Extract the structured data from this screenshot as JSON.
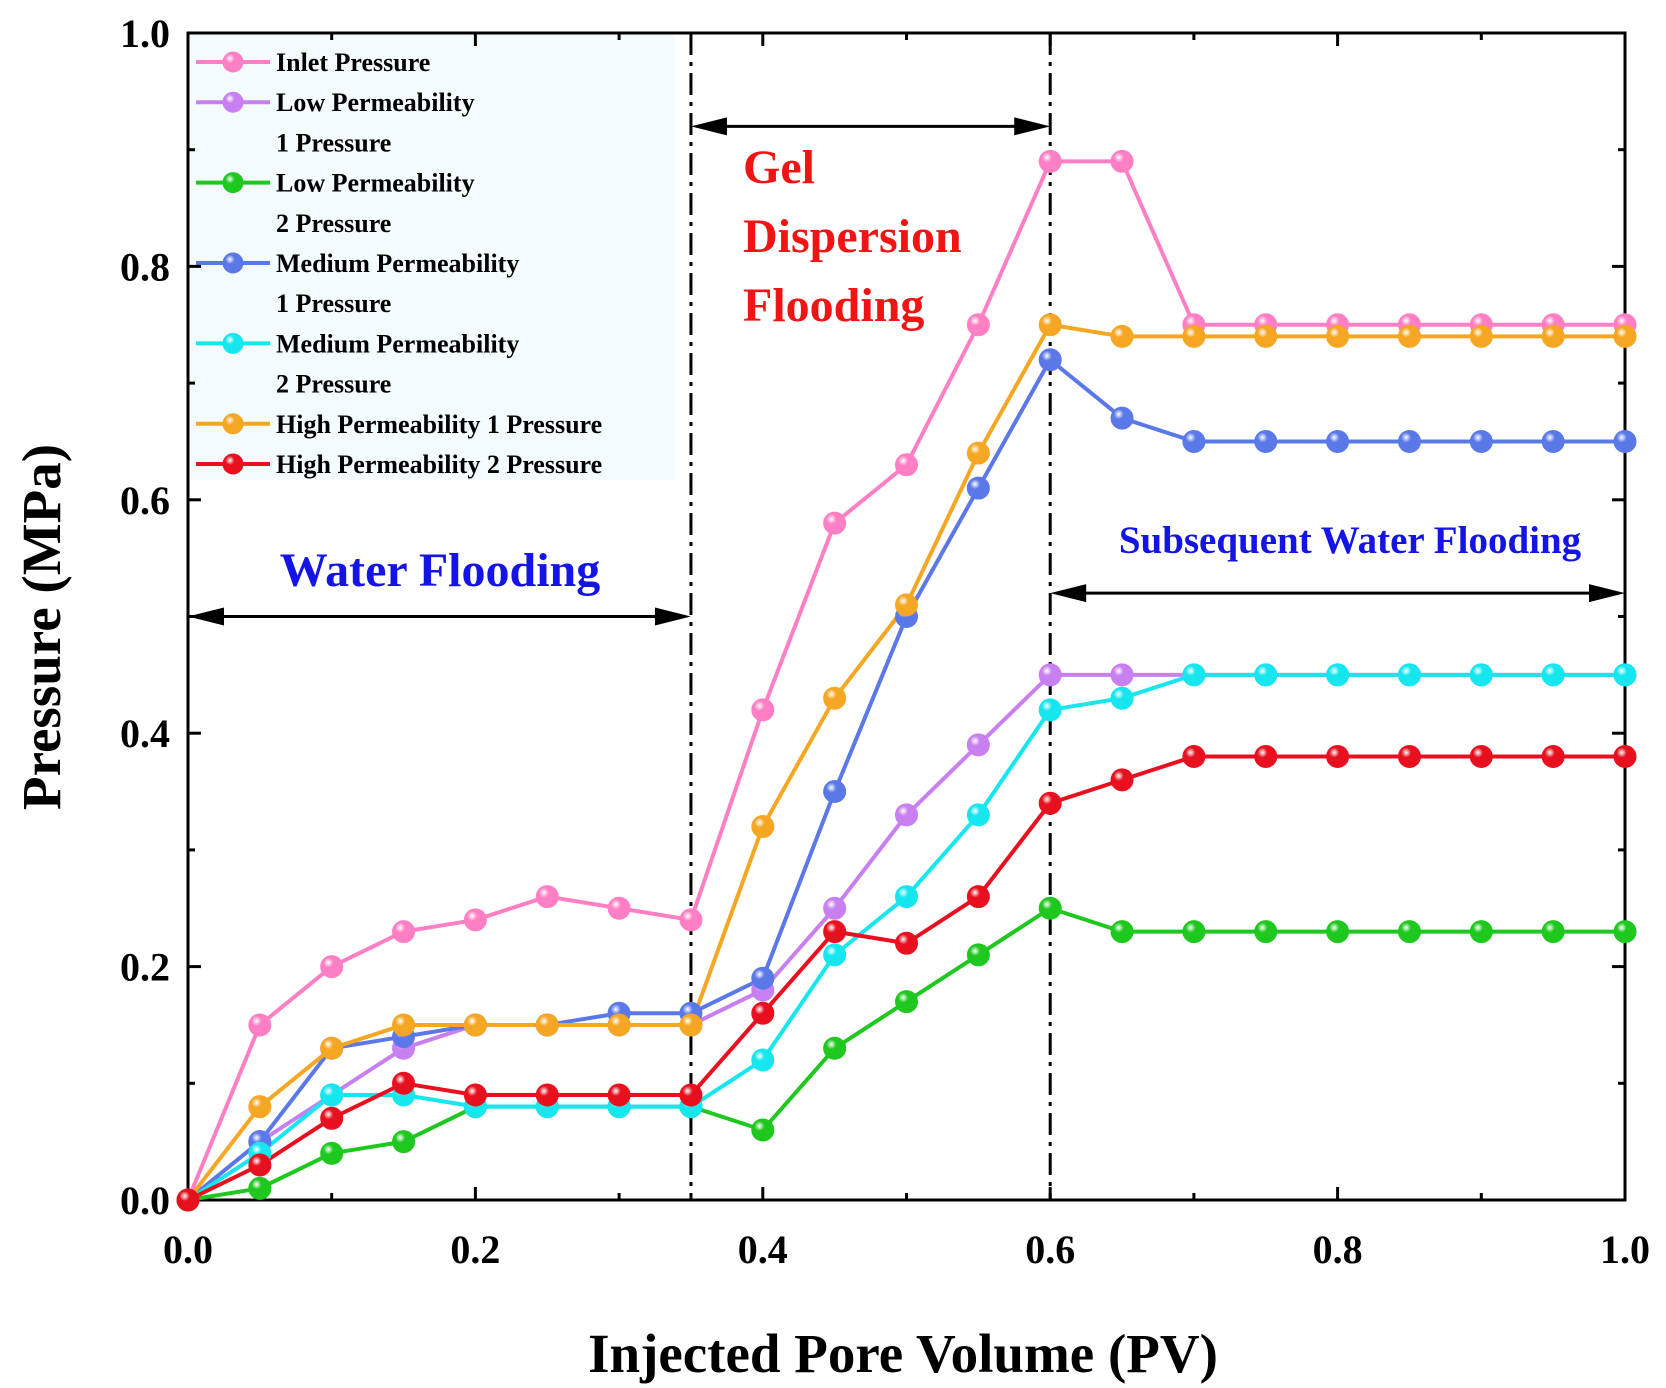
{
  "chart_data": {
    "type": "line",
    "xlabel": "Injected Pore Volume (PV)",
    "ylabel": "Pressure (MPa)",
    "xlim": [
      0,
      1
    ],
    "ylim": [
      0,
      1
    ],
    "xticks": [
      "0.0",
      "0.2",
      "0.4",
      "0.6",
      "0.8",
      "1.0"
    ],
    "yticks": [
      "0.0",
      "0.2",
      "0.4",
      "0.6",
      "0.8",
      "1.0"
    ],
    "x": [
      0.0,
      0.05,
      0.1,
      0.15,
      0.2,
      0.25,
      0.3,
      0.35,
      0.4,
      0.45,
      0.5,
      0.55,
      0.6,
      0.65,
      0.7,
      0.75,
      0.8,
      0.85,
      0.9,
      0.95,
      1.0
    ],
    "series": [
      {
        "name": "Inlet Pressure",
        "legend_lines": [
          "Inlet Pressure"
        ],
        "color": "#ff7fc4",
        "values": [
          0.0,
          0.15,
          0.2,
          0.23,
          0.24,
          0.26,
          0.25,
          0.24,
          0.42,
          0.58,
          0.63,
          0.75,
          0.89,
          0.89,
          0.75,
          0.75,
          0.75,
          0.75,
          0.75,
          0.75,
          0.75
        ]
      },
      {
        "name": "Low Permeability 1 Pressure",
        "legend_lines": [
          "Low Permeability",
          "1 Pressure"
        ],
        "color": "#c87ff0",
        "values": [
          0.0,
          0.05,
          0.09,
          0.13,
          0.15,
          0.15,
          0.15,
          0.15,
          0.18,
          0.25,
          0.33,
          0.39,
          0.45,
          0.45,
          0.45,
          0.45,
          0.45,
          0.45,
          0.45,
          0.45,
          0.45
        ]
      },
      {
        "name": "Low Permeability 2 Pressure",
        "legend_lines": [
          "Low Permeability",
          "2 Pressure"
        ],
        "color": "#1ec81e",
        "values": [
          0.0,
          0.01,
          0.04,
          0.05,
          0.08,
          0.08,
          0.08,
          0.08,
          0.06,
          0.13,
          0.17,
          0.21,
          0.25,
          0.23,
          0.23,
          0.23,
          0.23,
          0.23,
          0.23,
          0.23,
          0.23
        ]
      },
      {
        "name": "Medium Permeability 1 Pressure",
        "legend_lines": [
          "Medium Permeability",
          "1 Pressure"
        ],
        "color": "#5b78e8",
        "values": [
          0.0,
          0.05,
          0.13,
          0.14,
          0.15,
          0.15,
          0.16,
          0.16,
          0.19,
          0.35,
          0.5,
          0.61,
          0.72,
          0.67,
          0.65,
          0.65,
          0.65,
          0.65,
          0.65,
          0.65,
          0.65
        ]
      },
      {
        "name": "Medium Permeability 2 Pressure",
        "legend_lines": [
          "Medium Permeability",
          "2 Pressure"
        ],
        "color": "#16e6ee",
        "values": [
          0.0,
          0.04,
          0.09,
          0.09,
          0.08,
          0.08,
          0.08,
          0.08,
          0.12,
          0.21,
          0.26,
          0.33,
          0.42,
          0.43,
          0.45,
          0.45,
          0.45,
          0.45,
          0.45,
          0.45,
          0.45
        ]
      },
      {
        "name": "High Permeability 1 Pressure",
        "legend_lines": [
          "High Permeability 1 Pressure"
        ],
        "color": "#f5a623",
        "values": [
          0.0,
          0.08,
          0.13,
          0.15,
          0.15,
          0.15,
          0.15,
          0.15,
          0.32,
          0.43,
          0.51,
          0.64,
          0.75,
          0.74,
          0.74,
          0.74,
          0.74,
          0.74,
          0.74,
          0.74,
          0.74
        ]
      },
      {
        "name": "High Permeability 2 Pressure",
        "legend_lines": [
          "High Permeability 2 Pressure"
        ],
        "color": "#e8101e",
        "values": [
          0.0,
          0.03,
          0.07,
          0.1,
          0.09,
          0.09,
          0.09,
          0.09,
          0.16,
          0.23,
          0.22,
          0.26,
          0.34,
          0.36,
          0.38,
          0.38,
          0.38,
          0.38,
          0.38,
          0.38,
          0.38
        ]
      }
    ],
    "stage_boundaries": [
      0.35,
      0.6
    ],
    "annotations": [
      {
        "lines": [
          "Water Flooding"
        ],
        "color": "#1414e6",
        "arrow_x": [
          0.0,
          0.35
        ],
        "arrow_y": 0.5
      },
      {
        "lines": [
          "Gel",
          "Dispersion",
          "Flooding"
        ],
        "color": "#f01414",
        "arrow_x": [
          0.35,
          0.6
        ],
        "arrow_y": 0.92
      },
      {
        "lines": [
          "Subsequent Water Flooding"
        ],
        "color": "#1414e6",
        "arrow_x": [
          0.6,
          1.0
        ],
        "arrow_y": 0.52
      }
    ],
    "legend_position": "top-left",
    "grid": false
  }
}
